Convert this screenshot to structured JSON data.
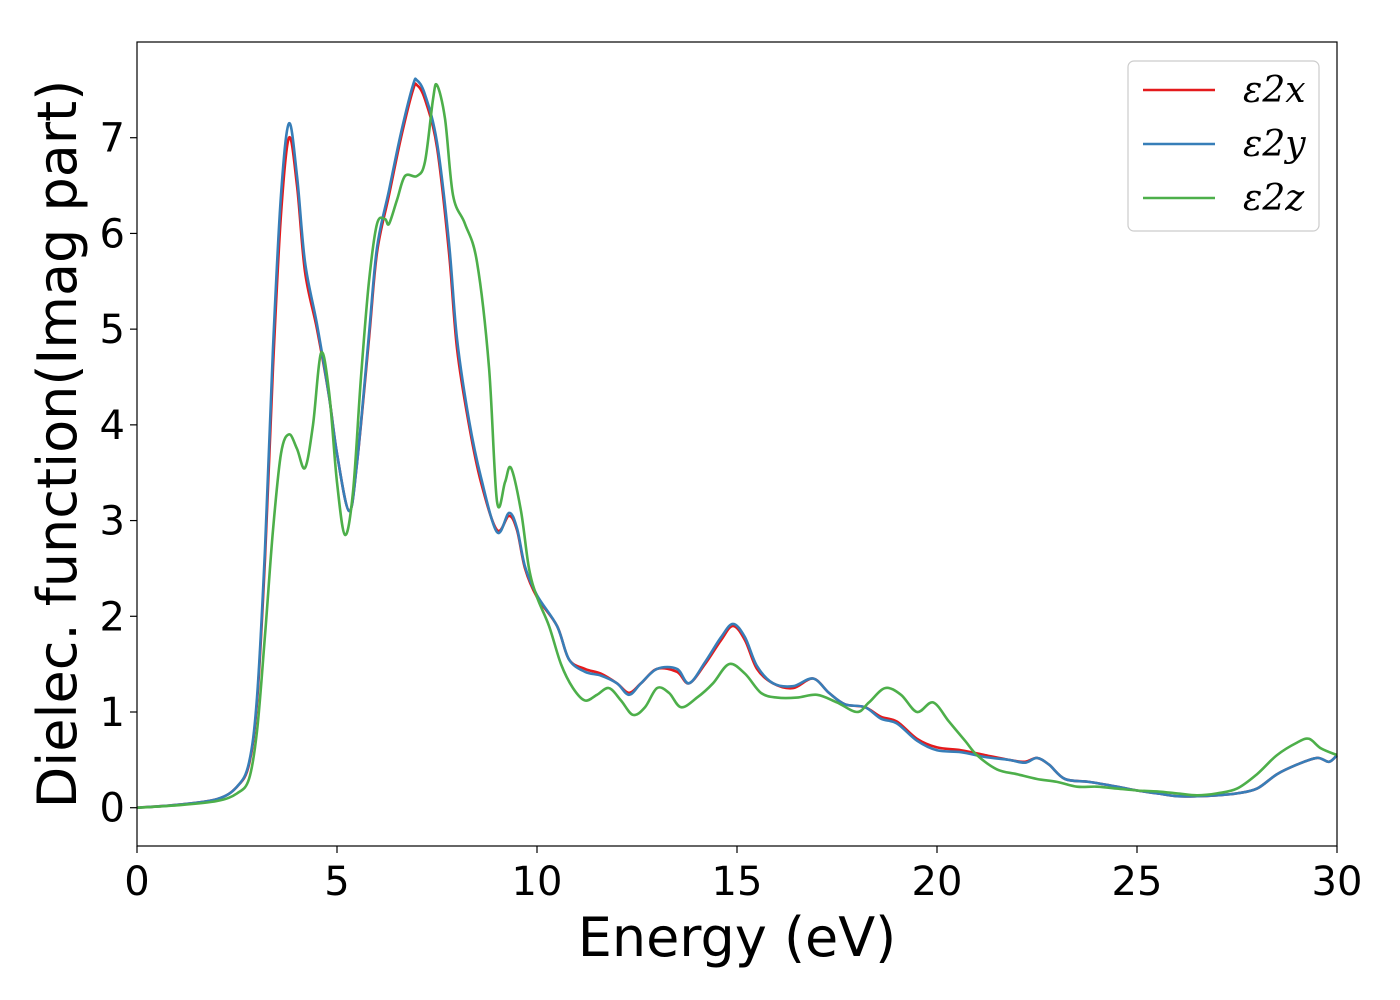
{
  "chart_data": {
    "type": "line",
    "xlabel": "Energy (eV)",
    "ylabel": "Dielec. function(Imag part)",
    "xlim": [
      0,
      30
    ],
    "ylim": [
      -0.4,
      8.0
    ],
    "xticks": [
      0,
      5,
      10,
      15,
      20,
      25,
      30
    ],
    "yticks": [
      0,
      1,
      2,
      3,
      4,
      5,
      6,
      7
    ],
    "grid": false,
    "legend_position": "top-right",
    "series": [
      {
        "name": "ε2x",
        "color": "#e41a1c",
        "points": [
          [
            0,
            0
          ],
          [
            1,
            0.03
          ],
          [
            2,
            0.09
          ],
          [
            2.5,
            0.22
          ],
          [
            2.8,
            0.45
          ],
          [
            3,
            1.1
          ],
          [
            3.2,
            2.6
          ],
          [
            3.4,
            4.6
          ],
          [
            3.6,
            6.2
          ],
          [
            3.8,
            7.0
          ],
          [
            4.0,
            6.5
          ],
          [
            4.2,
            5.6
          ],
          [
            4.5,
            5.0
          ],
          [
            4.8,
            4.3
          ],
          [
            5.0,
            3.7
          ],
          [
            5.3,
            3.1
          ],
          [
            5.5,
            3.6
          ],
          [
            5.8,
            4.9
          ],
          [
            6.0,
            5.8
          ],
          [
            6.3,
            6.4
          ],
          [
            6.6,
            7.0
          ],
          [
            6.9,
            7.5
          ],
          [
            7.0,
            7.55
          ],
          [
            7.2,
            7.4
          ],
          [
            7.5,
            6.9
          ],
          [
            7.8,
            5.8
          ],
          [
            8.0,
            4.8
          ],
          [
            8.3,
            4.0
          ],
          [
            8.6,
            3.4
          ],
          [
            9.0,
            2.9
          ],
          [
            9.3,
            3.05
          ],
          [
            9.5,
            2.9
          ],
          [
            9.7,
            2.5
          ],
          [
            10,
            2.2
          ],
          [
            10.5,
            1.9
          ],
          [
            10.8,
            1.55
          ],
          [
            11.2,
            1.45
          ],
          [
            11.6,
            1.4
          ],
          [
            12,
            1.3
          ],
          [
            12.3,
            1.2
          ],
          [
            12.6,
            1.3
          ],
          [
            13,
            1.45
          ],
          [
            13.5,
            1.42
          ],
          [
            13.8,
            1.3
          ],
          [
            14.2,
            1.5
          ],
          [
            14.6,
            1.75
          ],
          [
            14.9,
            1.9
          ],
          [
            15.2,
            1.75
          ],
          [
            15.5,
            1.45
          ],
          [
            15.9,
            1.3
          ],
          [
            16.4,
            1.25
          ],
          [
            16.9,
            1.35
          ],
          [
            17.3,
            1.2
          ],
          [
            17.7,
            1.08
          ],
          [
            18.2,
            1.05
          ],
          [
            18.6,
            0.95
          ],
          [
            19,
            0.9
          ],
          [
            19.5,
            0.72
          ],
          [
            20,
            0.63
          ],
          [
            20.6,
            0.6
          ],
          [
            21.2,
            0.55
          ],
          [
            21.8,
            0.5
          ],
          [
            22.2,
            0.48
          ],
          [
            22.5,
            0.52
          ],
          [
            22.8,
            0.45
          ],
          [
            23.2,
            0.3
          ],
          [
            23.8,
            0.27
          ],
          [
            24.5,
            0.22
          ],
          [
            25,
            0.18
          ],
          [
            25.5,
            0.15
          ],
          [
            26,
            0.12
          ],
          [
            26.5,
            0.12
          ],
          [
            27,
            0.13
          ],
          [
            27.5,
            0.15
          ],
          [
            28,
            0.2
          ],
          [
            28.5,
            0.35
          ],
          [
            29,
            0.45
          ],
          [
            29.5,
            0.52
          ],
          [
            29.8,
            0.48
          ],
          [
            30,
            0.55
          ]
        ]
      },
      {
        "name": "ε2y",
        "color": "#377eb8",
        "points": [
          [
            0,
            0
          ],
          [
            1,
            0.03
          ],
          [
            2,
            0.09
          ],
          [
            2.5,
            0.22
          ],
          [
            2.8,
            0.47
          ],
          [
            3,
            1.15
          ],
          [
            3.2,
            2.7
          ],
          [
            3.4,
            4.8
          ],
          [
            3.6,
            6.4
          ],
          [
            3.8,
            7.15
          ],
          [
            4.0,
            6.6
          ],
          [
            4.2,
            5.7
          ],
          [
            4.5,
            5.05
          ],
          [
            4.8,
            4.3
          ],
          [
            5.0,
            3.7
          ],
          [
            5.3,
            3.1
          ],
          [
            5.5,
            3.6
          ],
          [
            5.8,
            4.95
          ],
          [
            6.0,
            5.85
          ],
          [
            6.3,
            6.45
          ],
          [
            6.6,
            7.05
          ],
          [
            6.9,
            7.55
          ],
          [
            7.0,
            7.6
          ],
          [
            7.2,
            7.45
          ],
          [
            7.5,
            6.95
          ],
          [
            7.8,
            5.9
          ],
          [
            8.0,
            4.9
          ],
          [
            8.3,
            4.05
          ],
          [
            8.6,
            3.45
          ],
          [
            9.0,
            2.88
          ],
          [
            9.3,
            3.08
          ],
          [
            9.5,
            2.92
          ],
          [
            9.7,
            2.52
          ],
          [
            10,
            2.22
          ],
          [
            10.5,
            1.9
          ],
          [
            10.8,
            1.55
          ],
          [
            11.2,
            1.42
          ],
          [
            11.6,
            1.38
          ],
          [
            12,
            1.3
          ],
          [
            12.3,
            1.18
          ],
          [
            12.6,
            1.3
          ],
          [
            13,
            1.45
          ],
          [
            13.5,
            1.45
          ],
          [
            13.8,
            1.3
          ],
          [
            14.2,
            1.52
          ],
          [
            14.6,
            1.78
          ],
          [
            14.9,
            1.92
          ],
          [
            15.2,
            1.78
          ],
          [
            15.5,
            1.48
          ],
          [
            15.9,
            1.3
          ],
          [
            16.4,
            1.27
          ],
          [
            16.9,
            1.35
          ],
          [
            17.3,
            1.2
          ],
          [
            17.7,
            1.08
          ],
          [
            18.2,
            1.05
          ],
          [
            18.6,
            0.93
          ],
          [
            19,
            0.88
          ],
          [
            19.5,
            0.7
          ],
          [
            20,
            0.6
          ],
          [
            20.6,
            0.58
          ],
          [
            21.2,
            0.53
          ],
          [
            21.8,
            0.5
          ],
          [
            22.2,
            0.47
          ],
          [
            22.5,
            0.52
          ],
          [
            22.8,
            0.45
          ],
          [
            23.2,
            0.3
          ],
          [
            23.8,
            0.27
          ],
          [
            24.5,
            0.22
          ],
          [
            25,
            0.18
          ],
          [
            25.5,
            0.15
          ],
          [
            26,
            0.12
          ],
          [
            26.5,
            0.12
          ],
          [
            27,
            0.13
          ],
          [
            27.5,
            0.15
          ],
          [
            28,
            0.2
          ],
          [
            28.5,
            0.35
          ],
          [
            29,
            0.45
          ],
          [
            29.5,
            0.52
          ],
          [
            29.8,
            0.48
          ],
          [
            30,
            0.55
          ]
        ]
      },
      {
        "name": "ε2z",
        "color": "#4daf4a",
        "points": [
          [
            0,
            0
          ],
          [
            1,
            0.025
          ],
          [
            2,
            0.07
          ],
          [
            2.5,
            0.15
          ],
          [
            2.8,
            0.3
          ],
          [
            3,
            0.8
          ],
          [
            3.2,
            1.8
          ],
          [
            3.4,
            2.9
          ],
          [
            3.6,
            3.7
          ],
          [
            3.8,
            3.9
          ],
          [
            4.0,
            3.75
          ],
          [
            4.2,
            3.55
          ],
          [
            4.4,
            4.0
          ],
          [
            4.6,
            4.75
          ],
          [
            4.8,
            4.35
          ],
          [
            5.0,
            3.4
          ],
          [
            5.2,
            2.85
          ],
          [
            5.4,
            3.3
          ],
          [
            5.6,
            4.5
          ],
          [
            5.8,
            5.5
          ],
          [
            6.0,
            6.1
          ],
          [
            6.2,
            6.15
          ],
          [
            6.3,
            6.1
          ],
          [
            6.5,
            6.35
          ],
          [
            6.7,
            6.6
          ],
          [
            7.0,
            6.6
          ],
          [
            7.2,
            6.75
          ],
          [
            7.4,
            7.4
          ],
          [
            7.5,
            7.55
          ],
          [
            7.7,
            7.2
          ],
          [
            7.9,
            6.4
          ],
          [
            8.2,
            6.1
          ],
          [
            8.5,
            5.7
          ],
          [
            8.8,
            4.6
          ],
          [
            9.0,
            3.2
          ],
          [
            9.2,
            3.4
          ],
          [
            9.35,
            3.55
          ],
          [
            9.6,
            3.1
          ],
          [
            9.8,
            2.5
          ],
          [
            10,
            2.2
          ],
          [
            10.3,
            1.9
          ],
          [
            10.6,
            1.5
          ],
          [
            10.9,
            1.25
          ],
          [
            11.2,
            1.12
          ],
          [
            11.5,
            1.18
          ],
          [
            11.8,
            1.25
          ],
          [
            12.1,
            1.12
          ],
          [
            12.4,
            0.97
          ],
          [
            12.7,
            1.05
          ],
          [
            13,
            1.25
          ],
          [
            13.3,
            1.2
          ],
          [
            13.6,
            1.05
          ],
          [
            14,
            1.15
          ],
          [
            14.4,
            1.3
          ],
          [
            14.8,
            1.5
          ],
          [
            15.2,
            1.4
          ],
          [
            15.6,
            1.2
          ],
          [
            16,
            1.15
          ],
          [
            16.5,
            1.15
          ],
          [
            17,
            1.18
          ],
          [
            17.5,
            1.1
          ],
          [
            18,
            1.0
          ],
          [
            18.3,
            1.1
          ],
          [
            18.7,
            1.25
          ],
          [
            19.1,
            1.18
          ],
          [
            19.5,
            1.0
          ],
          [
            19.9,
            1.1
          ],
          [
            20.3,
            0.9
          ],
          [
            20.7,
            0.7
          ],
          [
            21,
            0.55
          ],
          [
            21.5,
            0.4
          ],
          [
            22,
            0.35
          ],
          [
            22.5,
            0.3
          ],
          [
            23,
            0.27
          ],
          [
            23.5,
            0.22
          ],
          [
            24,
            0.22
          ],
          [
            24.5,
            0.2
          ],
          [
            25,
            0.18
          ],
          [
            25.5,
            0.17
          ],
          [
            26,
            0.15
          ],
          [
            26.5,
            0.13
          ],
          [
            27,
            0.15
          ],
          [
            27.5,
            0.2
          ],
          [
            28,
            0.35
          ],
          [
            28.5,
            0.55
          ],
          [
            29,
            0.68
          ],
          [
            29.3,
            0.72
          ],
          [
            29.6,
            0.62
          ],
          [
            30,
            0.55
          ]
        ]
      }
    ]
  }
}
